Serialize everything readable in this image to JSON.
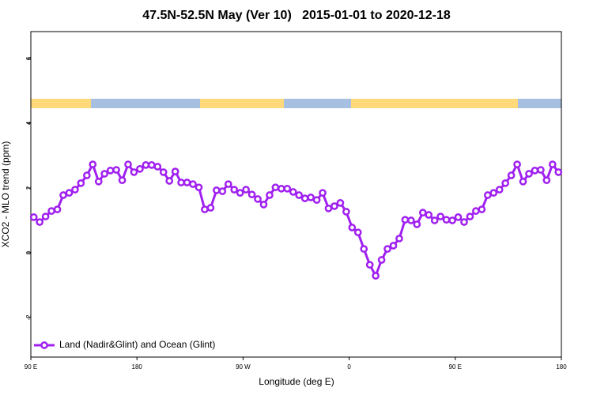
{
  "chart_data": {
    "type": "line",
    "title": "47.5N-52.5N May (Ver 10)   2015-01-01 to 2020-12-18",
    "xlabel": "Longitude (deg E)",
    "ylabel": "XCO2 - MLO trend (ppm)",
    "xlim": [
      90,
      540
    ],
    "ylim": [
      -3.22,
      6.83
    ],
    "xticks": [
      {
        "value": 90,
        "label": "90 E"
      },
      180,
      {
        "value": 270,
        "label": "90 W"
      },
      {
        "value": 360,
        "label": "0"
      },
      {
        "value": 450,
        "label": "90 E"
      },
      {
        "value": 540,
        "label": "180"
      }
    ],
    "yticks": [
      -2,
      0,
      2,
      4,
      6
    ],
    "legend": "bottom-left",
    "x": [
      92.5,
      97.5,
      102.5,
      107.5,
      112.5,
      117.5,
      122.5,
      127.5,
      132.5,
      137.5,
      142.5,
      147.5,
      152.5,
      157.5,
      162.5,
      167.5,
      172.5,
      177.5,
      182.5,
      187.5,
      192.5,
      197.5,
      202.5,
      207.5,
      212.5,
      217.5,
      222.5,
      227.5,
      232.5,
      237.5,
      242.5,
      247.5,
      252.5,
      257.5,
      262.5,
      267.5,
      272.5,
      277.5,
      282.5,
      287.5,
      292.5,
      297.5,
      302.5,
      307.5,
      312.5,
      317.5,
      322.5,
      327.5,
      332.5,
      337.5,
      342.5,
      347.5,
      352.5,
      357.5,
      362.5,
      367.5,
      372.5,
      377.5,
      382.5,
      387.5,
      392.5,
      397.5,
      402.5,
      407.5,
      412.5,
      417.5,
      422.5,
      427.5,
      432.5,
      437.5,
      442.5,
      447.5,
      452.5,
      457.5,
      462.5,
      467.5,
      472.5,
      477.5,
      482.5,
      487.5,
      492.5,
      497.5,
      502.5,
      507.5,
      512.5,
      517.5,
      522.5,
      527.5,
      532.5,
      537.5
    ],
    "series": [
      {
        "name": "Land (Nadir&Glint) and Ocean (Glint)",
        "color": "#a020f0",
        "values": [
          1.1,
          0.95,
          1.12,
          1.29,
          1.34,
          1.78,
          1.85,
          1.95,
          2.15,
          2.39,
          2.73,
          2.2,
          2.44,
          2.54,
          2.56,
          2.24,
          2.73,
          2.49,
          2.59,
          2.71,
          2.71,
          2.66,
          2.49,
          2.22,
          2.51,
          2.17,
          2.17,
          2.12,
          2.02,
          1.34,
          1.39,
          1.93,
          1.9,
          2.12,
          1.95,
          1.85,
          1.95,
          1.8,
          1.66,
          1.49,
          1.78,
          2.02,
          1.98,
          1.98,
          1.88,
          1.78,
          1.68,
          1.71,
          1.63,
          1.85,
          1.37,
          1.44,
          1.54,
          1.27,
          0.78,
          0.63,
          0.12,
          -0.37,
          -0.71,
          -0.22,
          0.12,
          0.22,
          0.44,
          1.02,
          1.0,
          0.88,
          1.24,
          1.17,
          1.0,
          1.12,
          1.02,
          1.0,
          1.1,
          0.95,
          1.12,
          1.29,
          1.34,
          1.78,
          1.85,
          1.95,
          2.15,
          2.39,
          2.73,
          2.2,
          2.44,
          2.54,
          2.56,
          2.24,
          2.73,
          2.49
        ]
      }
    ]
  }
}
